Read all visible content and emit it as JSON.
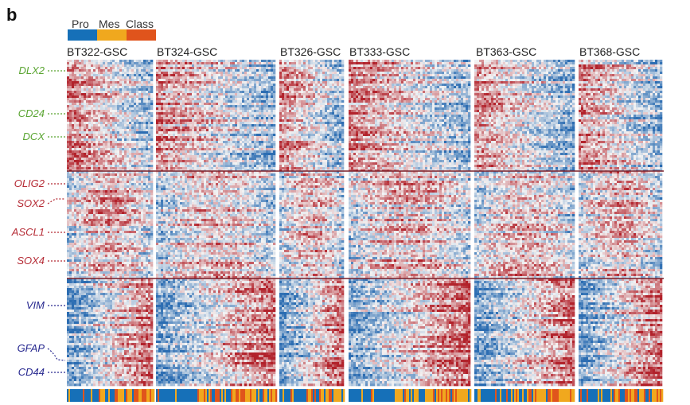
{
  "figure": {
    "panel_letter": "b"
  },
  "legend": {
    "items": [
      {
        "label": "Pro",
        "color": "#1670b8"
      },
      {
        "label": "Mes",
        "color": "#f0a81e"
      },
      {
        "label": "Class",
        "color": "#e0541c"
      }
    ]
  },
  "chart_data": {
    "type": "heatmap",
    "samples": [
      "BT322-GSC",
      "BT324-GSC",
      "BT326-GSC",
      "BT333-GSC",
      "BT363-GSC",
      "BT368-GSC"
    ],
    "gene_groups": [
      {
        "genes": [
          "DLX2",
          "CD24",
          "DCX"
        ],
        "color": "#5aa532"
      },
      {
        "genes": [
          "OLIG2",
          "SOX2",
          "ASCL1",
          "SOX4"
        ],
        "color": "#b52b35"
      },
      {
        "genes": [
          "VIM",
          "GFAP",
          "CD44"
        ],
        "color": "#27288f"
      }
    ],
    "color_scale": {
      "low": "#2c6db2",
      "mid": "#f4f4f4",
      "high": "#b2222b"
    },
    "class_bar_colors": {
      "Pro": "#1670b8",
      "Mes": "#f0a81e",
      "Class": "#e0541c"
    }
  }
}
